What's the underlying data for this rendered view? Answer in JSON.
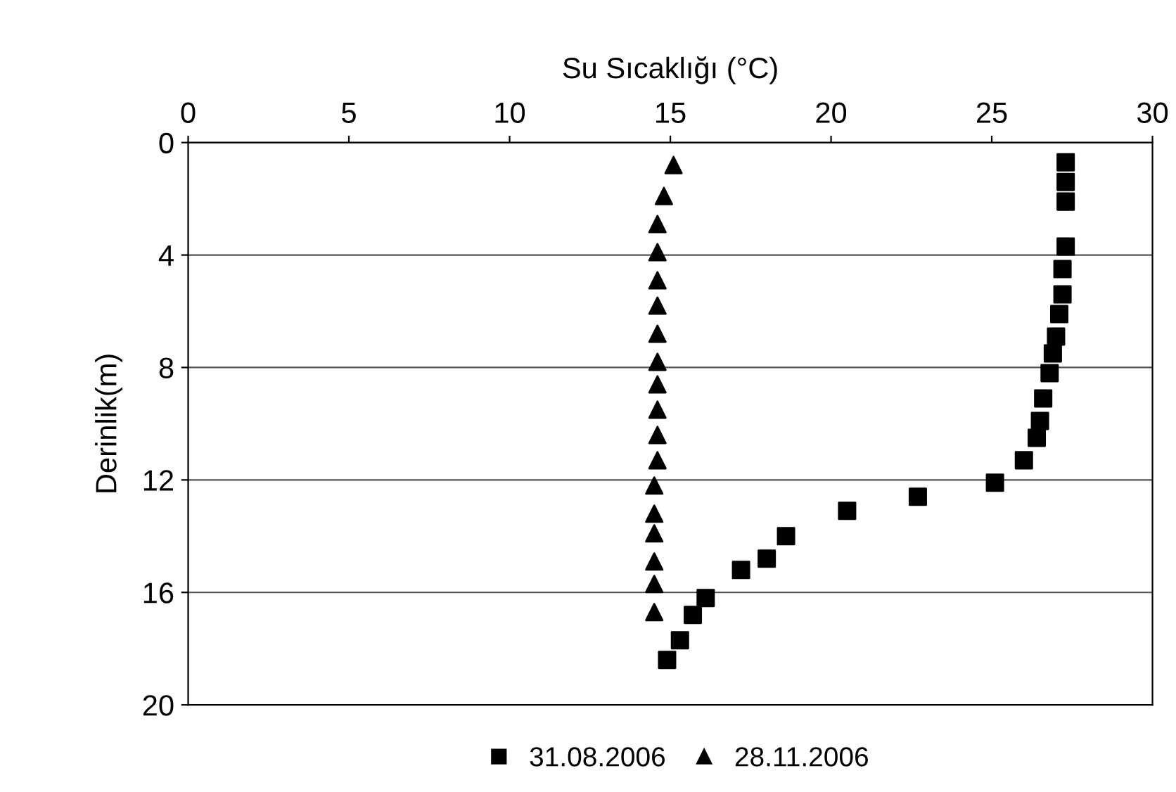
{
  "chart_data": {
    "type": "scatter",
    "xlabel": "Su Sıcaklığı (°C)",
    "ylabel": "Derinlik(m)",
    "xlim": [
      0,
      30
    ],
    "xticks": [
      0,
      5,
      10,
      15,
      20,
      25,
      30
    ],
    "ylim": [
      20,
      0
    ],
    "yticks": [
      0,
      4,
      8,
      12,
      16,
      20
    ],
    "grid": "y",
    "legend": "bottom",
    "series": [
      {
        "name": "31.08.2006",
        "color": "#000000",
        "marker": "square",
        "x": [
          27.3,
          27.3,
          27.3,
          27.3,
          27.2,
          27.2,
          27.1,
          27.0,
          26.9,
          26.8,
          26.6,
          26.5,
          26.4,
          26.0,
          25.1,
          22.7,
          20.5,
          18.6,
          18.0,
          17.2,
          16.1,
          15.7,
          15.3,
          14.9
        ],
        "values": [
          0.7,
          1.4,
          2.1,
          3.7,
          4.5,
          5.4,
          6.1,
          6.9,
          7.5,
          8.2,
          9.1,
          9.9,
          10.5,
          11.3,
          12.1,
          12.6,
          13.1,
          14.0,
          14.8,
          15.2,
          16.2,
          16.8,
          17.7,
          18.4
        ]
      },
      {
        "name": "28.11.2006",
        "color": "#000000",
        "marker": "triangle",
        "x": [
          15.1,
          14.8,
          14.6,
          14.6,
          14.6,
          14.6,
          14.6,
          14.6,
          14.6,
          14.6,
          14.6,
          14.6,
          14.5,
          14.5,
          14.5,
          14.5,
          14.5,
          14.5
        ],
        "values": [
          0.8,
          1.9,
          2.9,
          3.9,
          4.9,
          5.8,
          6.8,
          7.8,
          8.6,
          9.5,
          10.4,
          11.3,
          12.2,
          13.2,
          13.9,
          14.9,
          15.7,
          16.7
        ]
      }
    ]
  }
}
